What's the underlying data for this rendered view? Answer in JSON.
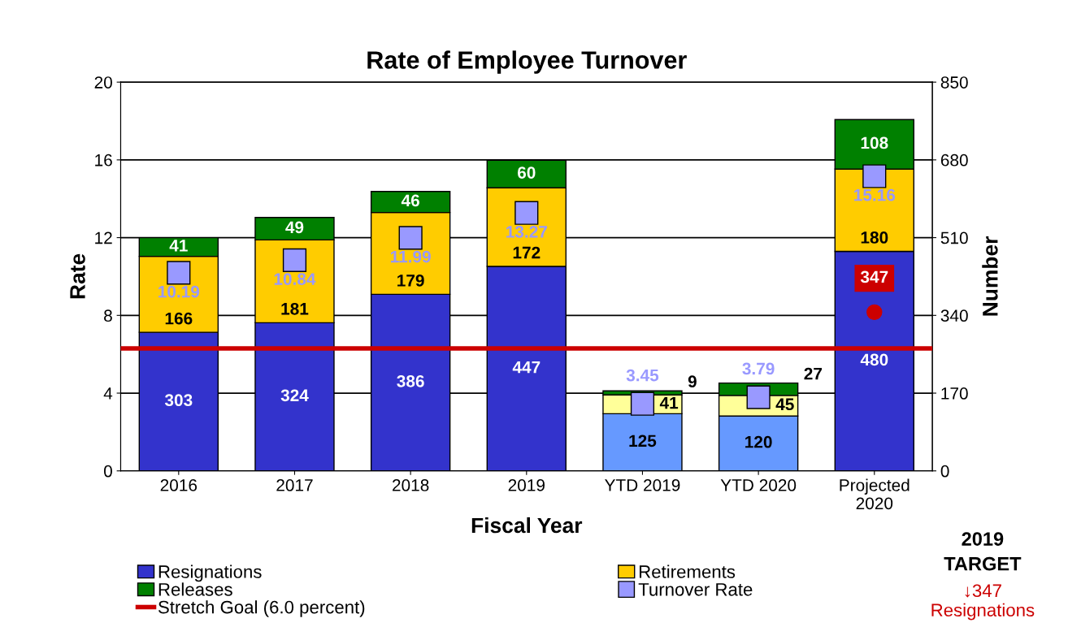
{
  "chart_data": {
    "type": "bar",
    "title": "Rate of Employee Turnover",
    "xlabel": "Fiscal Year",
    "ylabel": "Rate",
    "y2label": "Number",
    "categories": [
      "2016",
      "2017",
      "2018",
      "2019",
      "YTD 2019",
      "YTD 2020",
      "Projected\n2020"
    ],
    "stacked": true,
    "series": [
      {
        "name": "Resignations",
        "axis": "y2",
        "color": "#3333cc",
        "colors": [
          "#3333cc",
          "#3333cc",
          "#3333cc",
          "#3333cc",
          "#6699ff",
          "#6699ff",
          "#3333cc"
        ],
        "values": [
          303,
          324,
          386,
          447,
          125,
          120,
          480
        ]
      },
      {
        "name": "Retirements",
        "axis": "y2",
        "color": "#ffcc00",
        "colors": [
          "#ffcc00",
          "#ffcc00",
          "#ffcc00",
          "#ffcc00",
          "#ffff99",
          "#ffff99",
          "#ffcc00"
        ],
        "values": [
          166,
          181,
          179,
          172,
          41,
          45,
          180
        ]
      },
      {
        "name": "Releases",
        "axis": "y2",
        "color": "#008000",
        "values": [
          41,
          49,
          46,
          60,
          9,
          27,
          108
        ]
      },
      {
        "name": "Turnover Rate",
        "type": "scatter",
        "axis": "y",
        "color": "#9999ff",
        "marker": "square",
        "values": [
          10.19,
          10.84,
          11.99,
          13.27,
          3.45,
          3.79,
          15.16
        ]
      },
      {
        "type": "scatter",
        "axis": "y2",
        "color": "#cc0000",
        "marker": "circle",
        "values": [
          null,
          null,
          null,
          null,
          null,
          null,
          347
        ]
      }
    ],
    "ylim": [
      0,
      20
    ],
    "yticks": [
      0,
      4,
      8,
      12,
      16,
      20
    ],
    "y2lim": [
      0,
      850
    ],
    "y2ticks": [
      0,
      170,
      340,
      510,
      680,
      850
    ],
    "ref_lines": [
      {
        "axis": "y",
        "value": 6.3,
        "label": "Stretch Goal (6.0 percent)",
        "color": "#cc0000"
      }
    ],
    "data_labels": true,
    "grid": "y",
    "legend": "bottom",
    "annotations": [
      "2019\nTARGET",
      "↓347\nResignations"
    ]
  }
}
